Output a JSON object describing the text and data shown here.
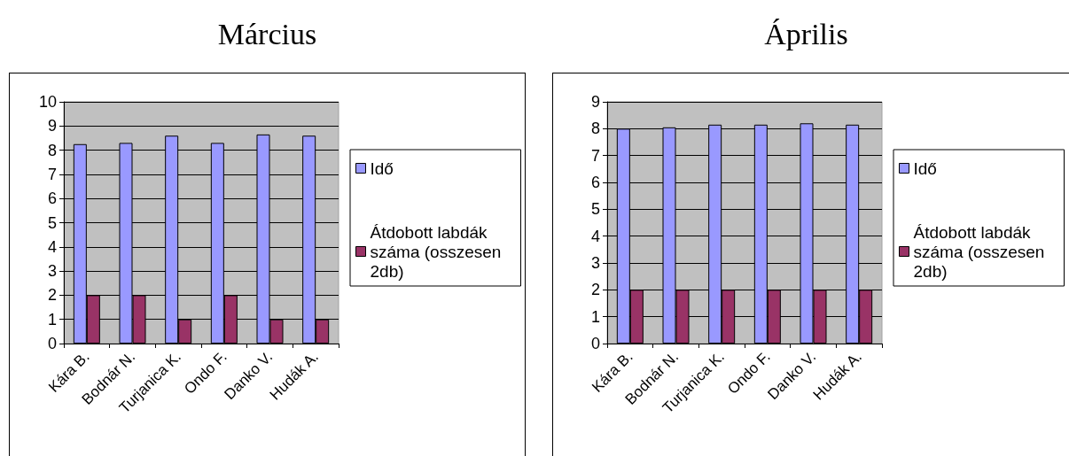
{
  "chart_data": [
    {
      "type": "bar",
      "title": "Március",
      "categories": [
        "Kára B.",
        "Bodnár N.",
        "Turjanica K.",
        "Ondo F.",
        "Danko V.",
        "Hudák A."
      ],
      "series": [
        {
          "name": "Idő",
          "color": "#9999ff",
          "values": [
            8.25,
            8.3,
            8.6,
            8.3,
            8.65,
            8.6
          ]
        },
        {
          "name": "Átdobott labdák száma (osszesen 2db)",
          "color": "#993366",
          "values": [
            2,
            2,
            1,
            2,
            1,
            1
          ]
        }
      ],
      "ylim": [
        0,
        10
      ],
      "yticks": [
        0,
        1,
        2,
        3,
        4,
        5,
        6,
        7,
        8,
        9,
        10
      ],
      "grid": "y",
      "legend": "right"
    },
    {
      "type": "bar",
      "title": "Április",
      "categories": [
        "Kára B.",
        "Bodnár N.",
        "Turjanica K.",
        "Ondo F.",
        "Danko V.",
        "Hudák A."
      ],
      "series": [
        {
          "name": "Idő",
          "color": "#9999ff",
          "values": [
            8.0,
            8.05,
            8.15,
            8.15,
            8.2,
            8.15
          ]
        },
        {
          "name": "Átdobott labdák száma (osszesen 2db)",
          "color": "#993366",
          "values": [
            2,
            2,
            2,
            2,
            2,
            2
          ]
        }
      ],
      "ylim": [
        0,
        9
      ],
      "yticks": [
        0,
        1,
        2,
        3,
        4,
        5,
        6,
        7,
        8,
        9
      ],
      "grid": "y",
      "legend": "right"
    }
  ]
}
